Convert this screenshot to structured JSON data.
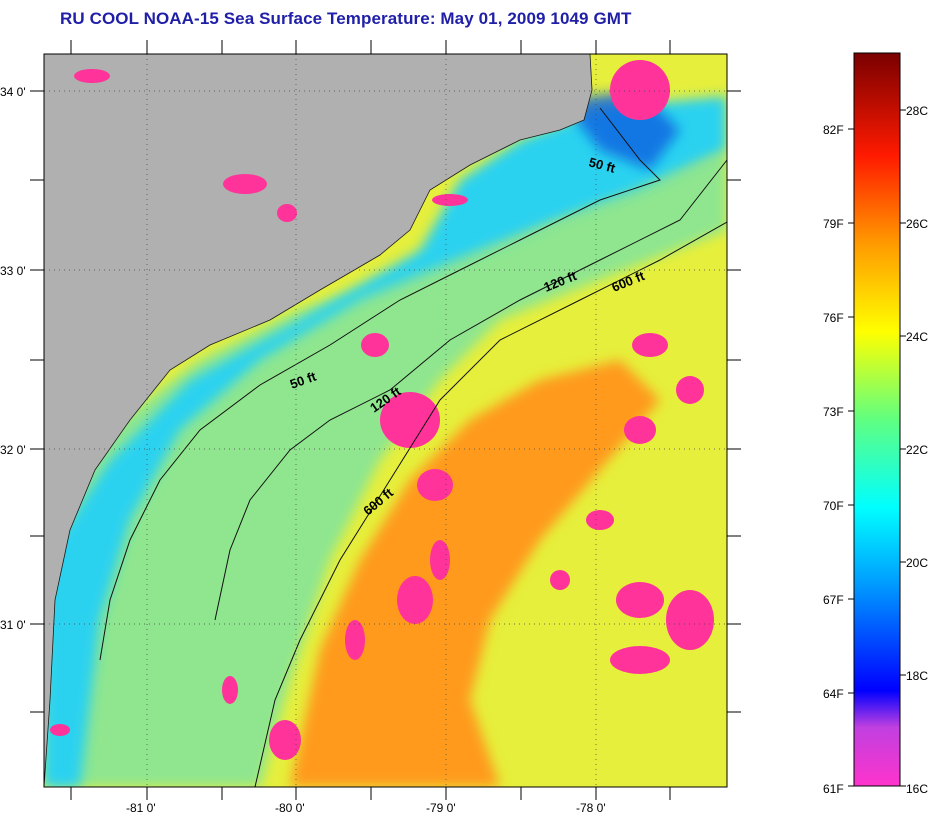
{
  "title": "RU COOL  NOAA-15  Sea Surface Temperature:  May 01, 2009 1049 GMT",
  "axes": {
    "lon_labels": [
      "-81 0'",
      "-80 0'",
      "-79 0'",
      "-78 0'"
    ],
    "lat_labels": [
      "34 0'",
      "33 0'",
      "32 0'",
      "31 0'"
    ]
  },
  "isobaths": [
    {
      "id": "50ft-north",
      "label": "50 ft"
    },
    {
      "id": "120ft-north",
      "label": "120 ft"
    },
    {
      "id": "600ft-north",
      "label": "600 ft"
    },
    {
      "id": "50ft-south",
      "label": "50 ft"
    },
    {
      "id": "120ft-south",
      "label": "120 ft"
    },
    {
      "id": "600ft-south",
      "label": "600 ft"
    }
  ],
  "colorbar": {
    "fahrenheit_labels": [
      "82F",
      "79F",
      "76F",
      "73F",
      "70F",
      "67F",
      "64F",
      "61F"
    ],
    "celsius_labels": [
      "28C",
      "26C",
      "24C",
      "22C",
      "20C",
      "18C",
      "16C"
    ],
    "colors": {
      "top": "#7a0000",
      "red": "#ff0000",
      "orange": "#ff8a00",
      "yellow": "#ffff00",
      "green": "#7fff3f",
      "cyan": "#00ffff",
      "blue": "#0000ff",
      "purple": "#8a2be2",
      "magenta": "#ff33cc"
    }
  },
  "map_colors": {
    "land": "#b0b0b0",
    "cloud": "#ff3399",
    "nearshore": "#2ad2f0",
    "shelf": "#8fe68f",
    "offshore": "#e6ef3c",
    "gulfstream": "#ff9a1a"
  }
}
